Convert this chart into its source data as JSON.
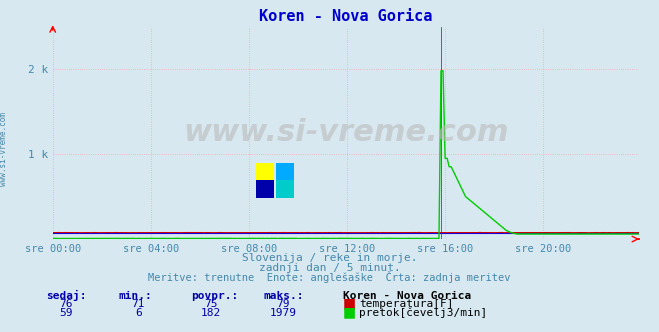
{
  "title": "Koren - Nova Gorica",
  "title_color": "#0000cd",
  "bg_color": "#d8e8f0",
  "plot_bg_color": "#d8e8f0",
  "grid_color": "#ff9999",
  "grid_linestyle": "dotted",
  "xticklabels": [
    "sre 00:00",
    "sre 04:00",
    "sre 08:00",
    "sre 12:00",
    "sre 16:00",
    "sre 20:00"
  ],
  "xtick_positions": [
    0,
    48,
    96,
    144,
    192,
    240
  ],
  "ylabel_left": "",
  "yticks": [
    0,
    1000,
    2000
  ],
  "yticklabels": [
    "",
    "1 k",
    "2 k"
  ],
  "ylim": [
    0,
    2500
  ],
  "xlim": [
    0,
    287
  ],
  "total_points": 288,
  "temp_color": "#cc0000",
  "flow_color": "#00cc00",
  "blue_baseline_color": "#0000ff",
  "watermark": "www.si-vreme.com",
  "watermark_color": "#aaaaaa",
  "subtitle1": "Slovenija / reke in morje.",
  "subtitle2": "zadnji dan / 5 minut.",
  "subtitle3": "Meritve: trenutne  Enote: anglešaške  Črta: zadnja meritev",
  "subtitle_color": "#4488aa",
  "legend_title": "Koren - Nova Gorica",
  "legend_color": "#000080",
  "temp_label": "temperatura[F]",
  "flow_label": "pretok[čevelj3/min]",
  "temp_sedaj": 76,
  "temp_min": 71,
  "temp_povpr": 75,
  "temp_maks": 79,
  "flow_sedaj": 59,
  "flow_min": 6,
  "flow_povpr": 182,
  "flow_maks": 1979,
  "col_sedaj": "sedaj:",
  "col_min": "min.:",
  "col_povpr": "povpr.:",
  "col_maks": "maks.:",
  "left_label": "www.si-vreme.com",
  "figsize": [
    6.59,
    3.32
  ],
  "dpi": 100
}
